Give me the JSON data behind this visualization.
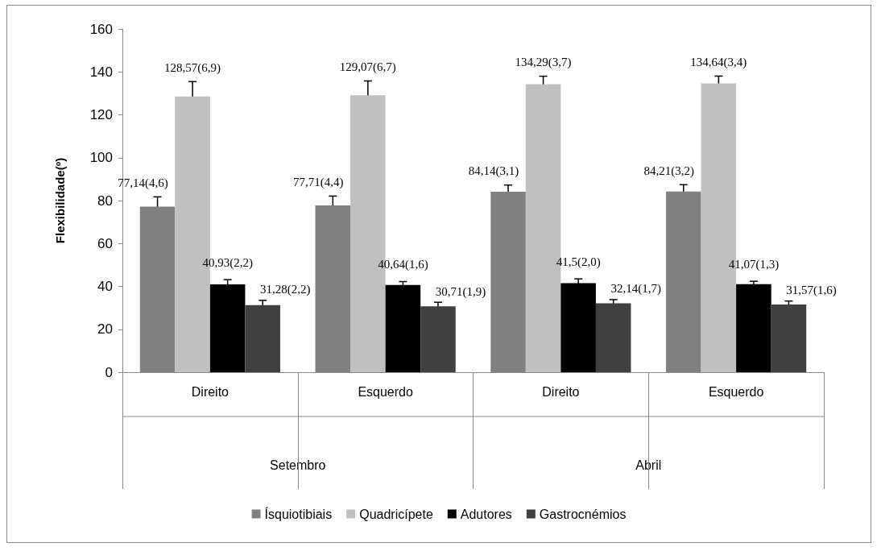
{
  "chart_data": {
    "type": "bar",
    "ylabel": "Flexibilidade(º)",
    "categories": [
      "Direito",
      "Esquerdo",
      "Direito",
      "Esquerdo"
    ],
    "annotations": [
      "Setembro",
      "Abril"
    ],
    "series": [
      {
        "name": "Ísquiotibiais",
        "color": "#808080",
        "values": [
          77.14,
          77.71,
          84.14,
          84.21
        ],
        "errors": [
          4.6,
          4.4,
          3.1,
          3.2
        ],
        "value_labels": [
          "77,14(4,6)",
          "77,71(4,4)",
          "84,14(3,1)",
          "84,21(3,2)"
        ]
      },
      {
        "name": "Quadricípete",
        "color": "#c0c0c0",
        "values": [
          128.57,
          129.07,
          134.29,
          134.64
        ],
        "errors": [
          6.9,
          6.7,
          3.7,
          3.4
        ],
        "value_labels": [
          "128,57(6,9)",
          "129,07(6,7)",
          "134,29(3,7)",
          "134,64(3,4)"
        ]
      },
      {
        "name": "Adutores",
        "color": "#000000",
        "values": [
          40.93,
          40.64,
          41.5,
          41.07
        ],
        "errors": [
          2.2,
          1.6,
          2.0,
          1.3
        ],
        "value_labels": [
          "40,93(2,2)",
          "40,64(1,6)",
          "41,5(2,0)",
          "41,07(1,3)"
        ]
      },
      {
        "name": "Gastrocnémios",
        "color": "#404040",
        "values": [
          31.28,
          30.71,
          32.14,
          31.57
        ],
        "errors": [
          2.2,
          1.9,
          1.7,
          1.6
        ],
        "value_labels": [
          "31,28(2,2)",
          "30,71(1,9)",
          "32,14(1,7)",
          "31,57(1,6)"
        ]
      }
    ],
    "ylim": [
      0,
      160
    ],
    "yticks": [
      0,
      20,
      40,
      60,
      80,
      100,
      120,
      140,
      160
    ],
    "grid": false,
    "legend": "bottom"
  }
}
